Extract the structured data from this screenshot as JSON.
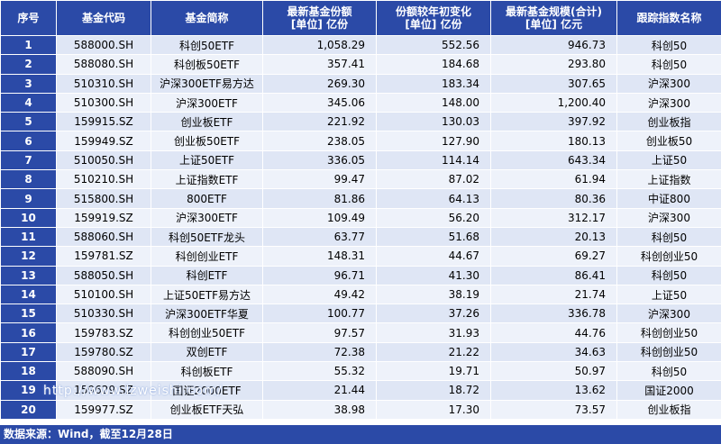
{
  "headers": {
    "idx": "序号",
    "code": "基金代码",
    "name": "基金简称",
    "shares_line1": "最新基金份额",
    "shares_line2": "[单位] 亿份",
    "change_line1": "份额较年初变化",
    "change_line2": "[单位] 亿份",
    "scale_line1": "最新基金规模(合计)",
    "scale_line2": "[单位] 亿元",
    "index": "跟踪指数名称"
  },
  "rows": [
    {
      "idx": "1",
      "code": "588000.SH",
      "name": "科创50ETF",
      "shares": "1,058.29",
      "change": "552.56",
      "scale": "946.73",
      "index": "科创50"
    },
    {
      "idx": "2",
      "code": "588080.SH",
      "name": "科创板50ETF",
      "shares": "357.41",
      "change": "184.68",
      "scale": "293.80",
      "index": "科创50"
    },
    {
      "idx": "3",
      "code": "510310.SH",
      "name": "沪深300ETF易方达",
      "shares": "269.30",
      "change": "183.34",
      "scale": "307.65",
      "index": "沪深300"
    },
    {
      "idx": "4",
      "code": "510300.SH",
      "name": "沪深300ETF",
      "shares": "345.06",
      "change": "148.00",
      "scale": "1,200.40",
      "index": "沪深300"
    },
    {
      "idx": "5",
      "code": "159915.SZ",
      "name": "创业板ETF",
      "shares": "221.92",
      "change": "130.03",
      "scale": "397.92",
      "index": "创业板指"
    },
    {
      "idx": "6",
      "code": "159949.SZ",
      "name": "创业板50ETF",
      "shares": "238.05",
      "change": "127.90",
      "scale": "180.13",
      "index": "创业板50"
    },
    {
      "idx": "7",
      "code": "510050.SH",
      "name": "上证50ETF",
      "shares": "336.05",
      "change": "114.14",
      "scale": "643.34",
      "index": "上证50"
    },
    {
      "idx": "8",
      "code": "510210.SH",
      "name": "上证指数ETF",
      "shares": "99.47",
      "change": "87.02",
      "scale": "61.94",
      "index": "上证指数"
    },
    {
      "idx": "9",
      "code": "515800.SH",
      "name": "800ETF",
      "shares": "81.86",
      "change": "64.13",
      "scale": "80.36",
      "index": "中证800"
    },
    {
      "idx": "10",
      "code": "159919.SZ",
      "name": "沪深300ETF",
      "shares": "109.49",
      "change": "56.20",
      "scale": "312.17",
      "index": "沪深300"
    },
    {
      "idx": "11",
      "code": "588060.SH",
      "name": "科创50ETF龙头",
      "shares": "63.77",
      "change": "51.68",
      "scale": "20.13",
      "index": "科创50"
    },
    {
      "idx": "12",
      "code": "159781.SZ",
      "name": "科创创业ETF",
      "shares": "148.31",
      "change": "44.67",
      "scale": "69.27",
      "index": "科创创业50"
    },
    {
      "idx": "13",
      "code": "588050.SH",
      "name": "科创ETF",
      "shares": "96.71",
      "change": "41.30",
      "scale": "86.41",
      "index": "科创50"
    },
    {
      "idx": "14",
      "code": "510100.SH",
      "name": "上证50ETF易方达",
      "shares": "49.42",
      "change": "38.19",
      "scale": "21.74",
      "index": "上证50"
    },
    {
      "idx": "15",
      "code": "510330.SH",
      "name": "沪深300ETF华夏",
      "shares": "100.77",
      "change": "37.26",
      "scale": "336.78",
      "index": "沪深300"
    },
    {
      "idx": "16",
      "code": "159783.SZ",
      "name": "科创创业50ETF",
      "shares": "97.57",
      "change": "31.93",
      "scale": "44.76",
      "index": "科创创业50"
    },
    {
      "idx": "17",
      "code": "159780.SZ",
      "name": "双创ETF",
      "shares": "72.38",
      "change": "21.22",
      "scale": "34.63",
      "index": "科创创业50"
    },
    {
      "idx": "18",
      "code": "588090.SH",
      "name": "科创板ETF",
      "shares": "55.32",
      "change": "19.71",
      "scale": "50.97",
      "index": "科创50"
    },
    {
      "idx": "19",
      "code": "159629.SZ",
      "name": "国证2000ETF",
      "shares": "21.44",
      "change": "18.72",
      "scale": "13.62",
      "index": "国证2000"
    },
    {
      "idx": "20",
      "code": "159977.SZ",
      "name": "创业板ETF天弘",
      "shares": "38.98",
      "change": "17.30",
      "scale": "73.57",
      "index": "创业板指"
    }
  ],
  "footer": "数据来源：Wind，截至12月28日",
  "watermark": "http://www.lzweishi.com/",
  "colors": {
    "header_bg": "#2b4aa7",
    "row_odd": "#dfe6f5",
    "row_even": "#eef2fa"
  }
}
